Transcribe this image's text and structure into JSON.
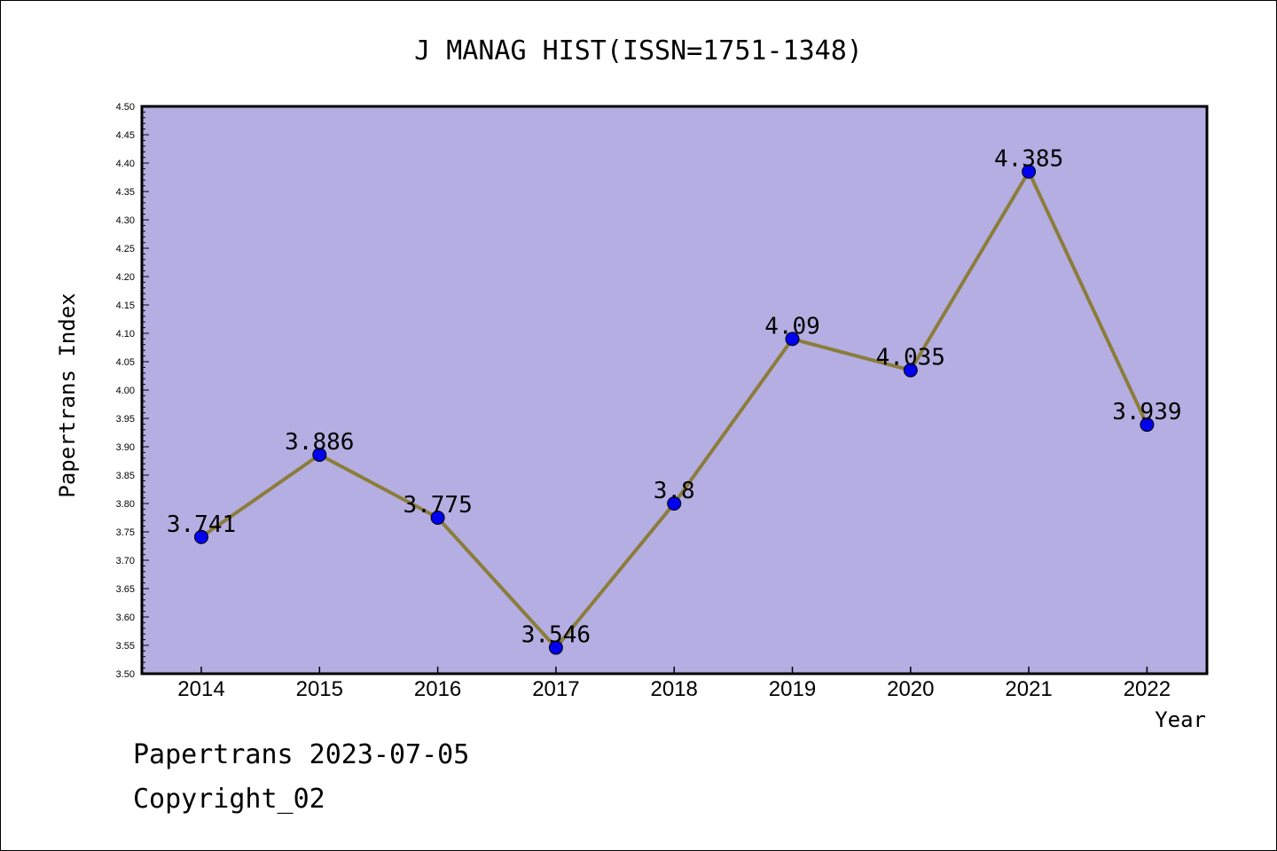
{
  "chart_data": {
    "type": "line",
    "title": "J MANAG HIST(ISSN=1751-1348)",
    "xlabel": "Year",
    "ylabel": "Papertrans Index",
    "categories": [
      "2014",
      "2015",
      "2016",
      "2017",
      "2018",
      "2019",
      "2020",
      "2021",
      "2022"
    ],
    "values": [
      3.741,
      3.886,
      3.775,
      3.546,
      3.8,
      4.09,
      4.035,
      4.385,
      3.939
    ],
    "data_labels": [
      "3.741",
      "3.886",
      "3.775",
      "3.546",
      "3.8",
      "4.09",
      "4.035",
      "4.385",
      "3.939"
    ],
    "ylim": [
      3.5,
      4.5
    ],
    "ytick_labels": [
      "3.50",
      "3.55",
      "3.60",
      "3.65",
      "3.70",
      "3.75",
      "3.80",
      "3.85",
      "3.90",
      "3.95",
      "4.00",
      "4.05",
      "4.10",
      "4.15",
      "4.20",
      "4.25",
      "4.30",
      "4.35",
      "4.40",
      "4.45",
      "4.50"
    ],
    "grid": false,
    "colors": {
      "plot_background": "#b4aee2",
      "line": "#8b7d3a",
      "marker": "#0000ee"
    }
  },
  "footer": {
    "line1": "Papertrans 2023-07-05",
    "line2": "Copyright_02"
  }
}
